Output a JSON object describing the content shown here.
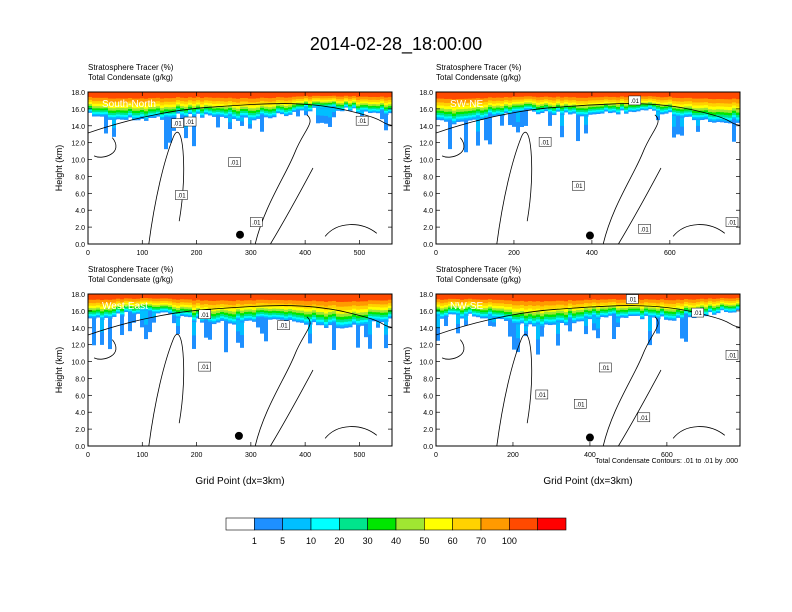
{
  "figure": {
    "title": "2014-02-28_18:00:00",
    "contour_note": "Total Condensate Contours: .01 to .01 by .000"
  },
  "colors": {
    "levels": [
      "#ffffff",
      "#1e90ff",
      "#00bfff",
      "#00ffff",
      "#00e58c",
      "#00e600",
      "#a0e632",
      "#ffff00",
      "#ffd200",
      "#ff9a00",
      "#ff4a00",
      "#ff0000"
    ],
    "contour": "#000000"
  },
  "chart_data": [
    {
      "type": "heatmap",
      "panel_label": "South-North",
      "var_line1": "Stratosphere Tracer   (%)",
      "var_line2": "Total Condensate   (g/kg)",
      "xlabel": "",
      "ylabel": "Height (km)",
      "xlim": [
        0,
        560
      ],
      "xticks": [
        0,
        100,
        200,
        300,
        400,
        500
      ],
      "ylim": [
        0,
        18
      ],
      "yticks": [
        "0.0",
        "2.0",
        "4.0",
        "6.0",
        "8.0",
        "10.0",
        "12.0",
        "14.0",
        "16.0",
        "18.0"
      ],
      "tracer_base_km": 15.4,
      "contour_labels": [
        {
          "x": 165,
          "y": 14.3,
          "text": ".01"
        },
        {
          "x": 188,
          "y": 14.5,
          "text": ".01"
        },
        {
          "x": 505,
          "y": 14.6,
          "text": ".01"
        },
        {
          "x": 270,
          "y": 9.7,
          "text": ".01"
        },
        {
          "x": 172,
          "y": 5.8,
          "text": ".01"
        },
        {
          "x": 310,
          "y": 2.6,
          "text": ".01"
        }
      ],
      "marker": {
        "x": 280,
        "y": 1.1
      }
    },
    {
      "type": "heatmap",
      "panel_label": "SW-NE",
      "var_line1": "Stratosphere Tracer   (%)",
      "var_line2": "Total Condensate   (g/kg)",
      "xlabel": "",
      "ylabel": "Height (km)",
      "xlim": [
        0,
        780
      ],
      "xticks": [
        0,
        200,
        400,
        600
      ],
      "ylim": [
        0,
        18
      ],
      "yticks": [
        "0.0",
        "2.0",
        "4.0",
        "6.0",
        "8.0",
        "10.0",
        "12.0",
        "14.0",
        "16.0",
        "18.0"
      ],
      "tracer_base_km": 15.2,
      "contour_labels": [
        {
          "x": 510,
          "y": 17.0,
          "text": ".01"
        },
        {
          "x": 280,
          "y": 12.1,
          "text": ".01"
        },
        {
          "x": 365,
          "y": 6.9,
          "text": ".01"
        },
        {
          "x": 535,
          "y": 1.8,
          "text": ".01"
        },
        {
          "x": 775,
          "y": 2.6,
          "text": ".01"
        }
      ],
      "marker": {
        "x": 395,
        "y": 1.0
      }
    },
    {
      "type": "heatmap",
      "panel_label": "West-East",
      "var_line1": "Stratosphere Tracer   (%)",
      "var_line2": "Total Condensate   (g/kg)",
      "xlabel": "Grid Point (dx=3km)",
      "ylabel": "Height (km)",
      "xlim": [
        0,
        560
      ],
      "xticks": [
        0,
        100,
        200,
        300,
        400,
        500
      ],
      "ylim": [
        0,
        18
      ],
      "yticks": [
        "0.0",
        "2.0",
        "4.0",
        "6.0",
        "8.0",
        "10.0",
        "12.0",
        "14.0",
        "16.0",
        "18.0"
      ],
      "tracer_base_km": 15.0,
      "contour_labels": [
        {
          "x": 215,
          "y": 15.6,
          "text": ".01"
        },
        {
          "x": 360,
          "y": 14.3,
          "text": ".01"
        },
        {
          "x": 215,
          "y": 9.4,
          "text": ".01"
        }
      ],
      "marker": {
        "x": 278,
        "y": 1.2
      }
    },
    {
      "type": "heatmap",
      "panel_label": "NW-SE",
      "var_line1": "Stratosphere Tracer   (%)",
      "var_line2": "Total Condensate   (g/kg)",
      "xlabel": "Grid Point (dx=3km)",
      "ylabel": "Height (km)",
      "xlim": [
        0,
        790
      ],
      "xticks": [
        0,
        200,
        400,
        600
      ],
      "ylim": [
        0,
        18
      ],
      "yticks": [
        "0.0",
        "2.0",
        "4.0",
        "6.0",
        "8.0",
        "10.0",
        "12.0",
        "14.0",
        "16.0",
        "18.0"
      ],
      "tracer_base_km": 15.2,
      "contour_labels": [
        {
          "x": 510,
          "y": 17.4,
          "text": ".01"
        },
        {
          "x": 680,
          "y": 15.8,
          "text": ".01"
        },
        {
          "x": 440,
          "y": 9.3,
          "text": ".01"
        },
        {
          "x": 790,
          "y": 10.8,
          "text": ".01"
        },
        {
          "x": 275,
          "y": 6.1,
          "text": ".01"
        },
        {
          "x": 375,
          "y": 5.0,
          "text": ".01"
        },
        {
          "x": 540,
          "y": 3.4,
          "text": ".01"
        }
      ],
      "marker": {
        "x": 400,
        "y": 1.0
      }
    }
  ],
  "colorbar": {
    "labels": [
      "1",
      "5",
      "10",
      "20",
      "30",
      "40",
      "50",
      "60",
      "70",
      "100"
    ]
  }
}
